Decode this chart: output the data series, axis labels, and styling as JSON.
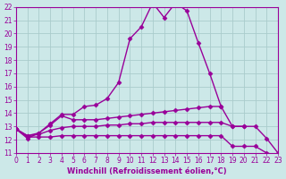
{
  "xlabel": "Windchill (Refroidissement éolien,°C)",
  "background_color": "#cce8e8",
  "grid_color": "#b0d8d8",
  "line_color": "#990099",
  "xmin": 0,
  "xmax": 23,
  "ymin": 11,
  "ymax": 22,
  "xticks": [
    0,
    1,
    2,
    3,
    4,
    5,
    6,
    7,
    8,
    9,
    10,
    11,
    12,
    13,
    14,
    15,
    16,
    17,
    18,
    19,
    20,
    21,
    22,
    23
  ],
  "yticks": [
    11,
    12,
    13,
    14,
    15,
    16,
    17,
    18,
    19,
    20,
    21,
    22
  ],
  "series": [
    {
      "x": [
        0,
        1,
        2,
        3,
        4,
        5,
        6,
        7,
        8,
        9,
        10,
        11,
        12,
        13,
        14,
        15,
        16,
        17,
        18,
        19,
        20,
        21,
        22,
        23
      ],
      "y": [
        12.8,
        12.1,
        12.5,
        13.2,
        13.9,
        13.9,
        14.5,
        14.6,
        15.1,
        16.3,
        19.6,
        20.5,
        22.3,
        21.2,
        22.3,
        21.7,
        19.3,
        17.0,
        14.5,
        null,
        null,
        null,
        null,
        null
      ]
    },
    {
      "x": [
        0,
        1,
        2,
        3,
        4,
        5,
        6,
        7,
        8,
        9,
        10,
        11,
        12,
        13,
        14,
        15,
        16,
        17,
        18,
        19,
        20,
        21,
        22,
        23
      ],
      "y": [
        12.8,
        12.3,
        12.5,
        13.1,
        13.8,
        13.5,
        13.5,
        13.5,
        13.6,
        13.7,
        13.8,
        13.9,
        14.0,
        14.1,
        14.2,
        14.3,
        14.4,
        14.5,
        14.5,
        13.0,
        13.0,
        null,
        null,
        null
      ]
    },
    {
      "x": [
        0,
        1,
        2,
        3,
        4,
        5,
        6,
        7,
        8,
        9,
        10,
        11,
        12,
        13,
        14,
        15,
        16,
        17,
        18,
        19,
        20,
        21,
        22,
        23
      ],
      "y": [
        12.8,
        12.3,
        12.4,
        12.7,
        12.9,
        13.0,
        13.0,
        13.0,
        13.1,
        13.1,
        13.2,
        13.2,
        13.3,
        13.3,
        13.3,
        13.3,
        13.3,
        13.3,
        13.3,
        13.0,
        13.0,
        13.0,
        12.1,
        11.0
      ]
    },
    {
      "x": [
        0,
        1,
        2,
        3,
        4,
        5,
        6,
        7,
        8,
        9,
        10,
        11,
        12,
        13,
        14,
        15,
        16,
        17,
        18,
        19,
        20,
        21,
        22,
        23
      ],
      "y": [
        12.8,
        12.2,
        12.2,
        12.2,
        12.3,
        12.3,
        12.3,
        12.3,
        12.3,
        12.3,
        12.3,
        12.3,
        12.3,
        12.3,
        12.3,
        12.3,
        12.3,
        12.3,
        12.3,
        11.5,
        11.5,
        11.5,
        11.0,
        10.8
      ]
    }
  ],
  "marker": "D",
  "markersize": 2.5,
  "linewidth": 1.0,
  "xlabel_fontsize": 6,
  "tick_fontsize": 5.5
}
